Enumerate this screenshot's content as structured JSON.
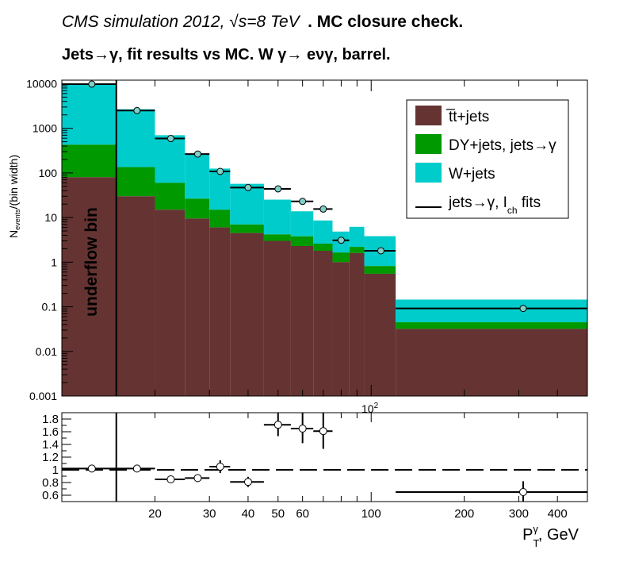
{
  "header": {
    "title_line1_italic": "CMS simulation 2012,   √s=8 TeV",
    "title_line1_bold": ". MC closure check.",
    "title_line2": "Jets→γ, fit results vs MC.       W  γ→ eνγ, barrel."
  },
  "axes": {
    "ylabel_main": "N",
    "ylabel_sub": "events",
    "ylabel_rest": "/(bin width)",
    "xlabel_main": "P",
    "xlabel_sup": "γ",
    "xlabel_sub": "T",
    "xlabel_rest": ", GeV",
    "top_xtick_label": "10",
    "top_xtick_exp": "2",
    "underflow_label": "underflow bin"
  },
  "legend": {
    "entries": [
      {
        "label": "t̅t+jets",
        "color": "#663333",
        "kind": "box"
      },
      {
        "label": "DY+jets, jets→γ",
        "color": "#009900",
        "kind": "box"
      },
      {
        "label": "W+jets",
        "color": "#00cccc",
        "kind": "box"
      },
      {
        "label_main": "jets→γ, I",
        "label_sub": "ch",
        "label_rest": " fits",
        "color": "#000000",
        "kind": "line"
      }
    ]
  },
  "chart_data": [
    {
      "type": "bar",
      "subtype": "stacked histogram with data points",
      "title": "CMS simulation 2012, √s=8 TeV . MC closure check. Jets→γ, fit results vs MC. W γ→ eνγ, barrel.",
      "xlabel": "P_T^γ, GeV",
      "ylabel": "N_events/(bin width)",
      "xscale": "log",
      "yscale": "log",
      "xlim": [
        10,
        500
      ],
      "ylim": [
        0.001,
        12000
      ],
      "yticks": [
        {
          "v": 10000,
          "l": "10000"
        },
        {
          "v": 1000,
          "l": "1000"
        },
        {
          "v": 100,
          "l": "100"
        },
        {
          "v": 10,
          "l": "10"
        },
        {
          "v": 1,
          "l": "1"
        },
        {
          "v": 0.1,
          "l": "0.1"
        },
        {
          "v": 0.01,
          "l": "0.01"
        },
        {
          "v": 0.001,
          "l": "0.001"
        }
      ],
      "underflow_bin": [
        10,
        15
      ],
      "bins": [
        {
          "lo": 10,
          "hi": 15,
          "ttjets": 80,
          "dy": 350,
          "wjets": 9600
        },
        {
          "lo": 15,
          "hi": 20,
          "ttjets": 30,
          "dy": 105,
          "wjets": 2540
        },
        {
          "lo": 20,
          "hi": 25,
          "ttjets": 15,
          "dy": 45,
          "wjets": 640
        },
        {
          "lo": 25,
          "hi": 30,
          "ttjets": 9.5,
          "dy": 17,
          "wjets": 245
        },
        {
          "lo": 30,
          "hi": 35,
          "ttjets": 6,
          "dy": 9,
          "wjets": 110
        },
        {
          "lo": 35,
          "hi": 45,
          "ttjets": 4.5,
          "dy": 2.5,
          "wjets": 50
        },
        {
          "lo": 45,
          "hi": 55,
          "ttjets": 3,
          "dy": 1.2,
          "wjets": 21
        },
        {
          "lo": 55,
          "hi": 65,
          "ttjets": 2.3,
          "dy": 1.5,
          "wjets": 10
        },
        {
          "lo": 65,
          "hi": 75,
          "ttjets": 1.8,
          "dy": 0.8,
          "wjets": 6
        },
        {
          "lo": 75,
          "hi": 85,
          "ttjets": 1.0,
          "dy": 0.65,
          "wjets": 3.2
        },
        {
          "lo": 85,
          "hi": 95,
          "ttjets": 1.6,
          "dy": 0.6,
          "wjets": 4
        },
        {
          "lo": 95,
          "hi": 120,
          "ttjets": 0.55,
          "dy": 0.27,
          "wjets": 3
        },
        {
          "lo": 120,
          "hi": 500,
          "ttjets": 0.032,
          "dy": 0.013,
          "wjets": 0.1
        }
      ],
      "points": [
        {
          "x": 12.5,
          "y": 9800,
          "xlo": 10,
          "xhi": 15
        },
        {
          "x": 17.5,
          "y": 2500,
          "xlo": 15,
          "xhi": 20
        },
        {
          "x": 22.5,
          "y": 590,
          "xlo": 20,
          "xhi": 25
        },
        {
          "x": 27.5,
          "y": 265,
          "xlo": 25,
          "xhi": 30
        },
        {
          "x": 32.5,
          "y": 108,
          "xlo": 30,
          "xhi": 35
        },
        {
          "x": 40,
          "y": 47,
          "xlo": 35,
          "xhi": 45
        },
        {
          "x": 50,
          "y": 44,
          "xlo": 45,
          "xhi": 55
        },
        {
          "x": 60,
          "y": 23,
          "xlo": 55,
          "xhi": 65
        },
        {
          "x": 70,
          "y": 15.5,
          "xlo": 65,
          "xhi": 75
        },
        {
          "x": 80,
          "y": 3.1,
          "xlo": 75,
          "xhi": 85
        },
        {
          "x": 107.5,
          "y": 1.8,
          "xlo": 95,
          "xhi": 120
        },
        {
          "x": 310,
          "y": 0.092,
          "xlo": 120,
          "xhi": 500
        }
      ]
    },
    {
      "type": "scatter",
      "subtype": "ratio",
      "xlabel": "P_T^γ, GeV",
      "xscale": "log",
      "xlim": [
        10,
        500
      ],
      "ylim": [
        0.5,
        1.9
      ],
      "reference_line": 1.0,
      "yticks": [
        {
          "v": 1.8,
          "l": "1.8"
        },
        {
          "v": 1.6,
          "l": "1.6"
        },
        {
          "v": 1.4,
          "l": "1.4"
        },
        {
          "v": 1.2,
          "l": "1.2"
        },
        {
          "v": 1.0,
          "l": "1"
        },
        {
          "v": 0.8,
          "l": "0.8"
        },
        {
          "v": 0.6,
          "l": "0.6"
        }
      ],
      "xticks": [
        {
          "v": 20,
          "l": "20"
        },
        {
          "v": 30,
          "l": "30"
        },
        {
          "v": 40,
          "l": "40"
        },
        {
          "v": 50,
          "l": "50"
        },
        {
          "v": 60,
          "l": "60"
        },
        {
          "v": 100,
          "l": "100"
        },
        {
          "v": 200,
          "l": "200"
        },
        {
          "v": 300,
          "l": "300"
        },
        {
          "v": 400,
          "l": "400"
        }
      ],
      "points": [
        {
          "x": 12.5,
          "y": 1.02,
          "xlo": 10,
          "xhi": 15,
          "ylo": 1.0,
          "yhi": 1.04
        },
        {
          "x": 17.5,
          "y": 1.02,
          "xlo": 15,
          "xhi": 20,
          "ylo": 1.0,
          "yhi": 1.04
        },
        {
          "x": 22.5,
          "y": 0.85,
          "xlo": 20,
          "xhi": 25,
          "ylo": 0.82,
          "yhi": 0.88
        },
        {
          "x": 27.5,
          "y": 0.87,
          "xlo": 25,
          "xhi": 30,
          "ylo": 0.81,
          "yhi": 0.93
        },
        {
          "x": 32.5,
          "y": 1.05,
          "xlo": 30,
          "xhi": 35,
          "ylo": 0.95,
          "yhi": 1.15
        },
        {
          "x": 40,
          "y": 0.81,
          "xlo": 35,
          "xhi": 45,
          "ylo": 0.73,
          "yhi": 0.89
        },
        {
          "x": 50,
          "y": 1.71,
          "xlo": 45,
          "xhi": 55,
          "ylo": 1.53,
          "yhi": 1.91
        },
        {
          "x": 60,
          "y": 1.65,
          "xlo": 55,
          "xhi": 65,
          "ylo": 1.42,
          "yhi": 1.91
        },
        {
          "x": 70,
          "y": 1.61,
          "xlo": 65,
          "xhi": 75,
          "ylo": 1.33,
          "yhi": 1.91
        },
        {
          "x": 310,
          "y": 0.65,
          "xlo": 120,
          "xhi": 500,
          "ylo": 0.5,
          "yhi": 0.82
        }
      ]
    }
  ]
}
